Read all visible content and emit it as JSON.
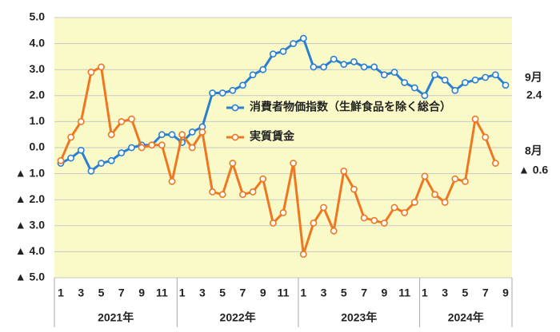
{
  "chart_data": {
    "type": "line",
    "categories": [
      "1",
      null,
      "3",
      null,
      "5",
      null,
      "7",
      null,
      "9",
      null,
      "11",
      null,
      "1",
      null,
      "3",
      null,
      "5",
      null,
      "7",
      null,
      "9",
      null,
      "11",
      null,
      "1",
      null,
      "3",
      null,
      "5",
      null,
      "7",
      null,
      "9",
      null,
      "11",
      null,
      "1",
      null,
      "3",
      null,
      "5",
      null,
      "7",
      null,
      "9"
    ],
    "year_groups": [
      "2021年",
      "2022年",
      "2023年",
      "2024年"
    ],
    "series": [
      {
        "name": "消費者物価指数（生鮮食品を除く総合）",
        "color": "#2b7fd0",
        "values": [
          -0.6,
          -0.4,
          -0.1,
          -0.9,
          -0.6,
          -0.5,
          -0.2,
          0.0,
          0.1,
          0.1,
          0.5,
          0.5,
          0.2,
          0.6,
          0.8,
          2.1,
          2.1,
          2.2,
          2.4,
          2.8,
          3.0,
          3.6,
          3.7,
          4.0,
          4.2,
          3.1,
          3.1,
          3.4,
          3.2,
          3.3,
          3.1,
          3.1,
          2.8,
          2.9,
          2.5,
          2.3,
          2.0,
          2.8,
          2.6,
          2.2,
          2.5,
          2.6,
          2.7,
          2.8,
          2.4
        ]
      },
      {
        "name": "実質賃金",
        "color": "#ee7722",
        "values": [
          -0.5,
          0.4,
          1.0,
          2.9,
          3.1,
          0.5,
          1.0,
          1.1,
          0.0,
          0.1,
          0.1,
          -1.3,
          0.5,
          0.0,
          0.6,
          -1.7,
          -1.8,
          -0.6,
          -1.8,
          -1.7,
          -1.2,
          -2.9,
          -2.5,
          -0.6,
          -4.1,
          -2.9,
          -2.3,
          -3.2,
          -0.9,
          -1.6,
          -2.7,
          -2.8,
          -2.9,
          -2.3,
          -2.5,
          -2.1,
          -1.1,
          -1.8,
          -2.1,
          -1.2,
          -1.3,
          1.1,
          0.4,
          -0.6,
          null
        ]
      }
    ],
    "ylim": [
      -5,
      5
    ],
    "yticks": [
      {
        "value": 5,
        "label": "5.0"
      },
      {
        "value": 4,
        "label": "4.0"
      },
      {
        "value": 3,
        "label": "3.0"
      },
      {
        "value": 2,
        "label": "2.0"
      },
      {
        "value": 1,
        "label": "1.0"
      },
      {
        "value": 0,
        "label": "0.0"
      },
      {
        "value": -1,
        "label": "▲ 1.0"
      },
      {
        "value": -2,
        "label": "▲ 2.0"
      },
      {
        "value": -3,
        "label": "▲ 3.0"
      },
      {
        "value": -4,
        "label": "▲ 4.0"
      },
      {
        "value": -5,
        "label": "▲ 5.0"
      }
    ],
    "grid": true,
    "annotations": [
      "9月",
      "2.4",
      "8月",
      "▲ 0.6"
    ]
  }
}
